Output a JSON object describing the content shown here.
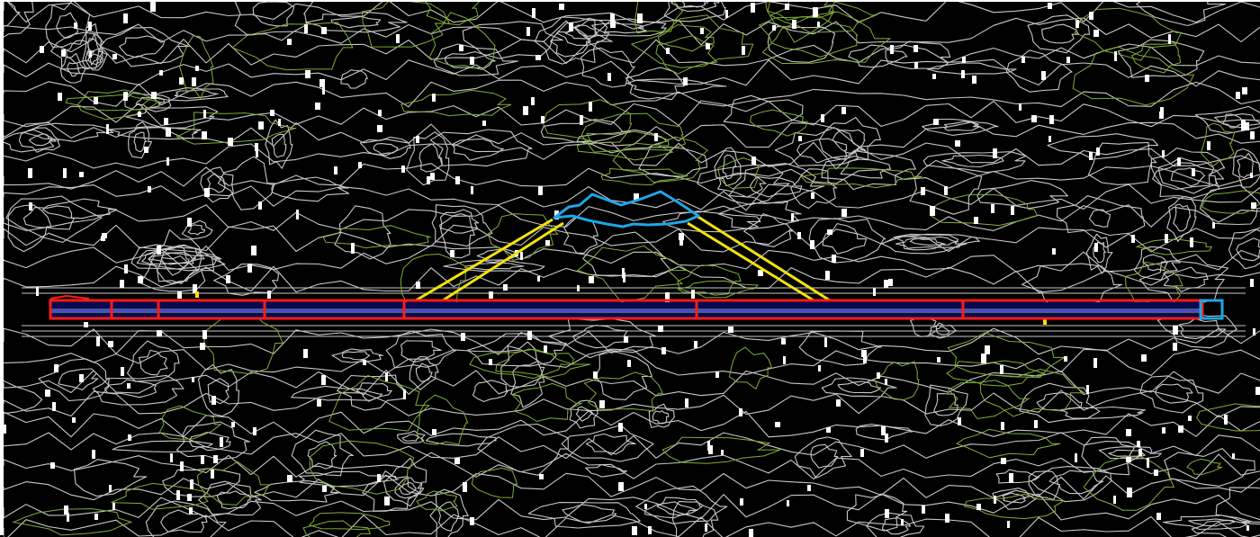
{
  "drawing": {
    "background": "#000000",
    "layers": [
      {
        "name": "contour-major",
        "color": "#c8c8c8"
      },
      {
        "name": "contour-minor",
        "color": "#7fae3a"
      },
      {
        "name": "spot-markers",
        "color": "#ffffff"
      },
      {
        "name": "runway-outline",
        "color": "#ff1a1a"
      },
      {
        "name": "runway-fill",
        "color": "#0a0a50"
      },
      {
        "name": "terminal-outline",
        "color": "#1ea6e6"
      },
      {
        "name": "taxiway",
        "color": "#f2e20c"
      }
    ]
  }
}
